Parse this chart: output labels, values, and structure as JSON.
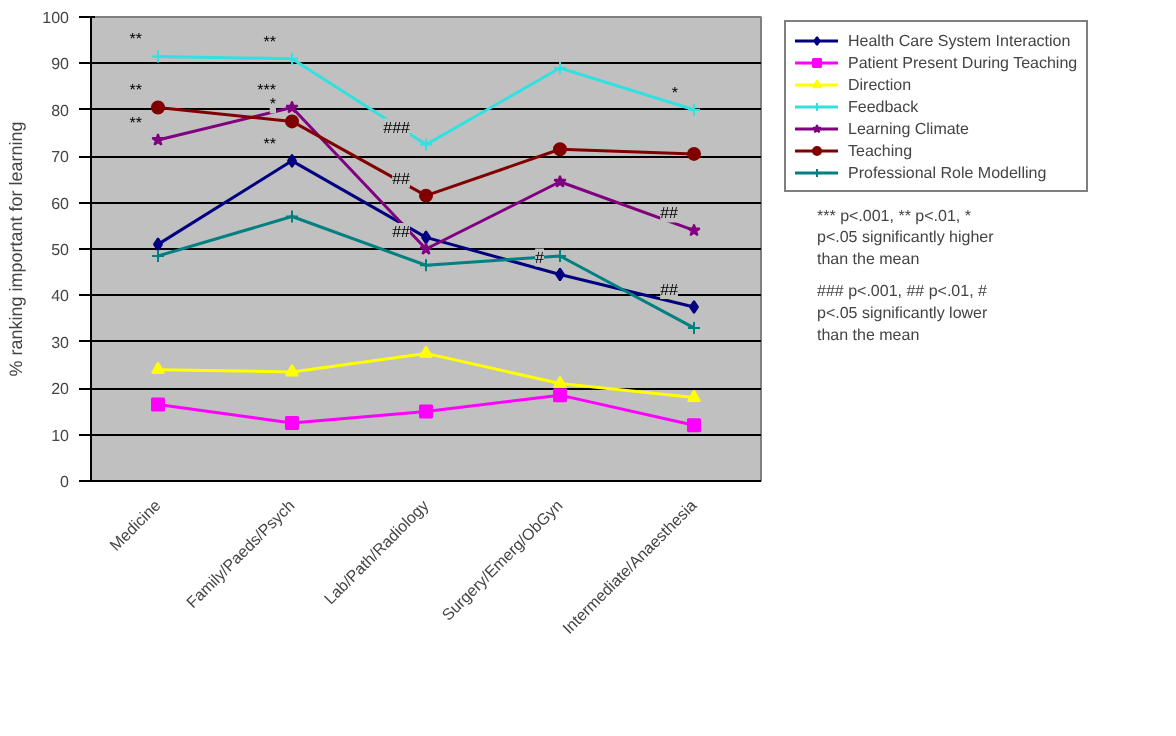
{
  "chart_data": {
    "type": "line",
    "ylabel": "% ranking important for learning",
    "categories": [
      "Medicine",
      "Family/Paeds/Psych",
      "Lab/Path/Radiology",
      "Surgery/Emerg/ObGyn",
      "Intermediate/Anaesthesia"
    ],
    "ylim": [
      0,
      100
    ],
    "yticks": [
      0,
      10,
      20,
      30,
      40,
      50,
      60,
      70,
      80,
      90,
      100
    ],
    "grid": "y",
    "legend": "right",
    "series": [
      {
        "name": "Health Care System Interaction",
        "color": "#000080",
        "marker": "diamond",
        "values": [
          51,
          69,
          52.5,
          44.5,
          37.5
        ]
      },
      {
        "name": "Patient Present During Teaching",
        "color": "#ff00ff",
        "marker": "square",
        "values": [
          16.5,
          12.5,
          15,
          18.5,
          12
        ]
      },
      {
        "name": "Direction",
        "color": "#ffff00",
        "marker": "triangle",
        "values": [
          24,
          23.5,
          27.5,
          21,
          18
        ]
      },
      {
        "name": "Feedback",
        "color": "#33e0e0",
        "marker": "cross",
        "values": [
          91.5,
          91,
          72.5,
          89,
          80
        ]
      },
      {
        "name": "Learning Climate",
        "color": "#800080",
        "marker": "star",
        "values": [
          73.5,
          80.5,
          50,
          64.5,
          54
        ]
      },
      {
        "name": "Teaching",
        "color": "#800000",
        "marker": "circle",
        "values": [
          80.5,
          77.5,
          61.5,
          71.5,
          70.5
        ]
      },
      {
        "name": "Professional Role Modelling",
        "color": "#008080",
        "marker": "cross",
        "values": [
          48.5,
          57,
          46.5,
          48.5,
          33
        ]
      }
    ],
    "annotations": [
      {
        "text": "**",
        "x": "Medicine",
        "y": 91.5
      },
      {
        "text": "**",
        "x": "Medicine",
        "y": 80.5
      },
      {
        "text": "**",
        "x": "Medicine",
        "y": 73.5
      },
      {
        "text": "**",
        "x": "Family/Paeds/Psych",
        "y": 91
      },
      {
        "text": "***",
        "x": "Family/Paeds/Psych",
        "y": 80.5
      },
      {
        "text": "*",
        "x": "Family/Paeds/Psych",
        "y": 77.5
      },
      {
        "text": "**",
        "x": "Family/Paeds/Psych",
        "y": 69
      },
      {
        "text": "###",
        "x": "Lab/Path/Radiology",
        "y": 72.5
      },
      {
        "text": "##",
        "x": "Lab/Path/Radiology",
        "y": 61.5
      },
      {
        "text": "##",
        "x": "Lab/Path/Radiology",
        "y": 50
      },
      {
        "text": "#",
        "x": "Surgery/Emerg/ObGyn",
        "y": 44.5
      },
      {
        "text": "*",
        "x": "Intermediate/Anaesthesia",
        "y": 80
      },
      {
        "text": "##",
        "x": "Intermediate/Anaesthesia",
        "y": 54
      },
      {
        "text": "##",
        "x": "Intermediate/Anaesthesia",
        "y": 37.5
      },
      "*** p<.001, ** p<.01, * p<.05 significantly higher than the mean",
      "### p<.001, ## p<.01, # p<.05 significantly lower than the mean"
    ]
  }
}
